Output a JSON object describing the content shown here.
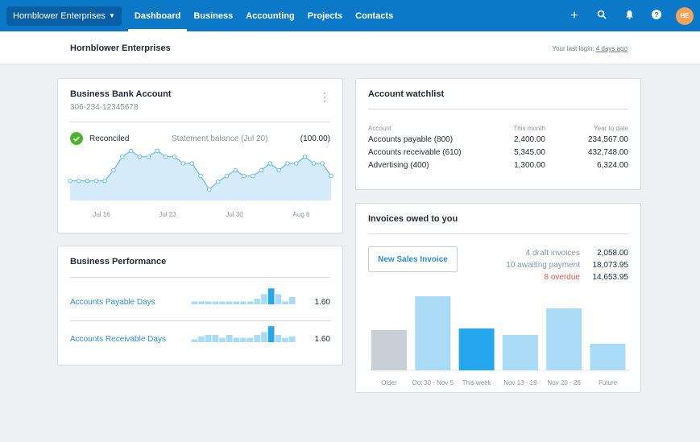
{
  "nav": {
    "org": "Hornblower Enterprises",
    "links": [
      "Dashboard",
      "Business",
      "Accounting",
      "Projects",
      "Contacts"
    ],
    "active": "Dashboard",
    "icons": [
      "plus-icon",
      "search-icon",
      "bell-icon",
      "help-icon"
    ],
    "avatar": "HE"
  },
  "subheader": {
    "title": "Hornblower Enterprises",
    "last_login_prefix": "Your last login: ",
    "last_login_link": "4 days ago"
  },
  "bank": {
    "title": "Business Bank Account",
    "number": "306-234-12345678",
    "status": "Reconciled",
    "statement_label": "Statement balance (Jul 20)",
    "statement_value": "(100.00)",
    "chart_data": {
      "type": "area",
      "x_ticks": [
        "Jul 16",
        "Jul 23",
        "Jul 30",
        "Aug 6"
      ],
      "values": [
        22,
        22,
        22,
        22,
        22,
        33,
        47,
        53,
        47,
        47,
        53,
        47,
        47,
        40,
        40,
        27,
        13,
        21,
        27,
        33,
        27,
        27,
        33,
        40,
        33,
        40,
        40,
        47,
        40,
        40,
        27
      ]
    }
  },
  "performance": {
    "title": "Business Performance",
    "rows": [
      {
        "label": "Accounts Payable Days",
        "value": "1.60",
        "bars": [
          2,
          2,
          2,
          2,
          2,
          2,
          2,
          2,
          2,
          4,
          7,
          11,
          7,
          2,
          5
        ],
        "highlight": 11
      },
      {
        "label": "Accounts Receivable Days",
        "value": "1.60",
        "bars": [
          2,
          4,
          5,
          5,
          3,
          5,
          3,
          3,
          3,
          5,
          7,
          11,
          5,
          3,
          4
        ],
        "highlight": 11
      }
    ]
  },
  "watchlist": {
    "title": "Account watchlist",
    "columns": [
      "Account",
      "This month",
      "Year to date"
    ],
    "rows": [
      [
        "Accounts payable (800)",
        "2,400.00",
        "234,567.00"
      ],
      [
        "Accounts receivable (610)",
        "5,345.00",
        "432,748.00"
      ],
      [
        "Advertising (400)",
        "1,300.00",
        "6,324.00"
      ]
    ]
  },
  "invoices": {
    "title": "Invoices owed to you",
    "button": "New Sales Invoice",
    "summary": [
      {
        "label": "4 draft invoices",
        "value": "2,058.00",
        "color": "#8a95a1"
      },
      {
        "label": "10 awaiting payment",
        "value": "18,073.95",
        "color": "#8a95a1"
      },
      {
        "label": "8 overdue",
        "value": "14,653.95",
        "color": "#e5534b"
      }
    ],
    "chart_data": {
      "type": "bar",
      "categories": [
        "Older",
        "Oct 30 - Nov 5",
        "This week",
        "Nov 13 - 19",
        "Nov 20 - 26",
        "Future"
      ],
      "values": [
        50,
        92,
        52,
        44,
        77,
        33
      ],
      "colors": [
        "#c8cfd6",
        "#a9dbf7",
        "#26a6ec",
        "#a9dbf7",
        "#a9dbf7",
        "#a9dbf7"
      ]
    }
  }
}
